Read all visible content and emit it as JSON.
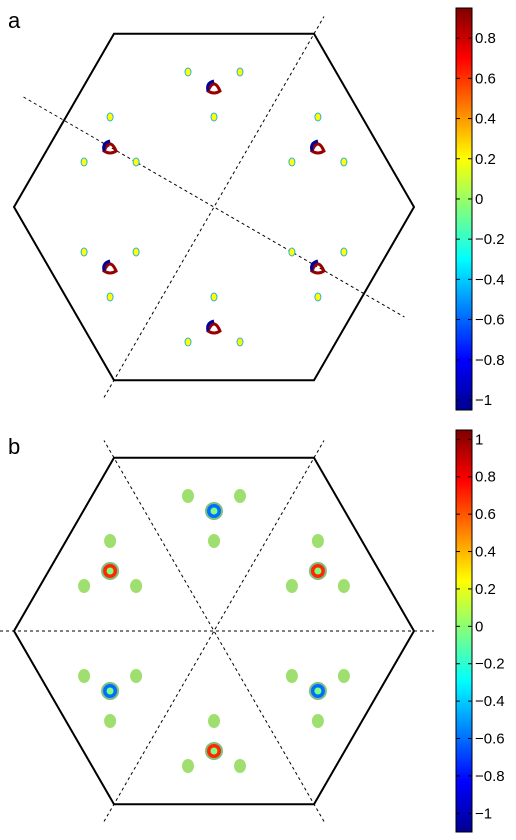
{
  "chart_data": [
    {
      "type": "heatmap",
      "panel_label": "a",
      "colorbar": {
        "ticks": [
          "0.8",
          "0.6",
          "0.4",
          "0.2",
          "0",
          "−0.2",
          "−0.4",
          "−0.6",
          "−0.8",
          "−1"
        ],
        "tick_values": [
          0.8,
          0.6,
          0.4,
          0.2,
          0,
          -0.2,
          -0.4,
          -0.6,
          -0.8,
          -1
        ],
        "range": [
          -1.05,
          0.95
        ],
        "colormap": "jet"
      },
      "guides": [
        {
          "angle_deg": 60
        },
        {
          "angle_deg": -30
        }
      ],
      "clusters": [
        {
          "angle_deg": 90,
          "value": 0.9,
          "kind": "tri"
        },
        {
          "angle_deg": 150,
          "value": 0.9,
          "kind": "tri"
        },
        {
          "angle_deg": 210,
          "value": 0.9,
          "kind": "tri"
        },
        {
          "angle_deg": 270,
          "value": 0.9,
          "kind": "tri"
        },
        {
          "angle_deg": 330,
          "value": 0.9,
          "kind": "tri"
        },
        {
          "angle_deg": 30,
          "value": 0.9,
          "kind": "tri"
        }
      ]
    },
    {
      "type": "heatmap",
      "panel_label": "b",
      "colorbar": {
        "ticks": [
          "1",
          "0.8",
          "0.6",
          "0.4",
          "0.2",
          "0",
          "−0.2",
          "−0.4",
          "−0.6",
          "−0.8",
          "−1"
        ],
        "tick_values": [
          1,
          0.8,
          0.6,
          0.4,
          0.2,
          0,
          -0.2,
          -0.4,
          -0.6,
          -0.8,
          -1
        ],
        "range": [
          -1.1,
          1.05
        ],
        "colormap": "jet"
      },
      "guides": [
        {
          "angle_deg": 0
        },
        {
          "angle_deg": 60
        },
        {
          "angle_deg": 120
        }
      ],
      "clusters": [
        {
          "angle_deg": 90,
          "value": -0.6,
          "kind": "ring"
        },
        {
          "angle_deg": 150,
          "value": 0.7,
          "kind": "ring"
        },
        {
          "angle_deg": 210,
          "value": -0.6,
          "kind": "ring"
        },
        {
          "angle_deg": 270,
          "value": 0.7,
          "kind": "ring"
        },
        {
          "angle_deg": 330,
          "value": -0.6,
          "kind": "ring"
        },
        {
          "angle_deg": 30,
          "value": 0.7,
          "kind": "ring"
        }
      ]
    }
  ]
}
